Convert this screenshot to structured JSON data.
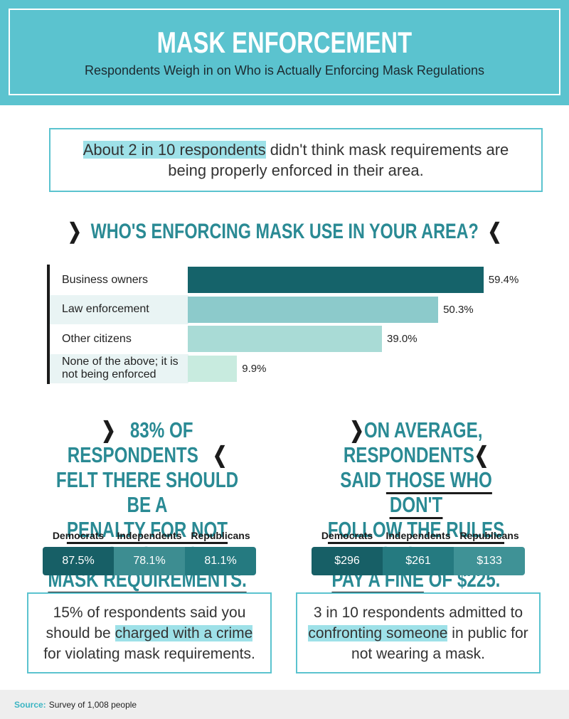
{
  "header": {
    "title": "MASK ENFORCEMENT",
    "subtitle": "Respondents Weigh in on Who is Actually Enforcing Mask Regulations"
  },
  "callout": [
    {
      "text": "About 2 in 10 respondents",
      "highlight": true
    },
    {
      "text": " didn't think mask requirements are being properly enforced in their area."
    }
  ],
  "chart_data": {
    "type": "bar",
    "orientation": "horizontal",
    "title": "WHO'S ENFORCING MASK USE IN YOUR AREA?",
    "categories": [
      "Business owners",
      "Law enforcement",
      "Other citizens",
      "None of the above; it is not being enforced"
    ],
    "values": [
      59.4,
      50.3,
      39.0,
      9.9
    ],
    "value_labels": [
      "59.4%",
      "50.3%",
      "39.0%",
      "9.9%"
    ],
    "colors": [
      "#15636a",
      "#8ccacb",
      "#a9dbd6",
      "#c8ebdf"
    ]
  },
  "panels": [
    {
      "heading": [
        [
          {
            "text": "83% OF RESPONDENTS"
          }
        ],
        [
          {
            "text": "FELT THERE SHOULD BE A"
          }
        ],
        [
          {
            "text": "PENALTY FOR NOT FOLLOWING",
            "underline": true
          }
        ],
        [
          {
            "text": "MASK REQUIREMENTS.",
            "underline": true
          }
        ]
      ],
      "table": {
        "columns": [
          "Democrats",
          "Independents",
          "Republicans"
        ],
        "cells": [
          "87.5%",
          "78.1%",
          "81.1%"
        ],
        "colors": [
          "#175f66",
          "#3d8d91",
          "#257a80"
        ]
      },
      "note": [
        {
          "text": "15% of respondents said you should be "
        },
        {
          "text": "charged with a crime",
          "highlight": true
        },
        {
          "text": " for violating mask requirements."
        }
      ]
    },
    {
      "heading": [
        [
          {
            "text": "ON AVERAGE, RESPONDENTS"
          }
        ],
        [
          {
            "text": "SAID "
          },
          {
            "text": "THOSE WHO DON'T",
            "underline": true
          }
        ],
        [
          {
            "text": "FOLLOW THE RULES SHOULD",
            "underline": true
          }
        ],
        [
          {
            "text": "PAY A FINE",
            "underline": true
          },
          {
            "text": " OF $225."
          }
        ]
      ],
      "table": {
        "columns": [
          "Democrats",
          "Independents",
          "Republicans"
        ],
        "cells": [
          "$296",
          "$261",
          "$133"
        ],
        "colors": [
          "#175f66",
          "#257a80",
          "#3f9296"
        ]
      },
      "note": [
        {
          "text": "3 in 10 respondents admitted to "
        },
        {
          "text": "confronting someone",
          "highlight": true
        },
        {
          "text": " in public for not wearing a mask."
        }
      ]
    }
  ],
  "source": {
    "label": "Source:",
    "text": "Survey of 1,008 people"
  }
}
